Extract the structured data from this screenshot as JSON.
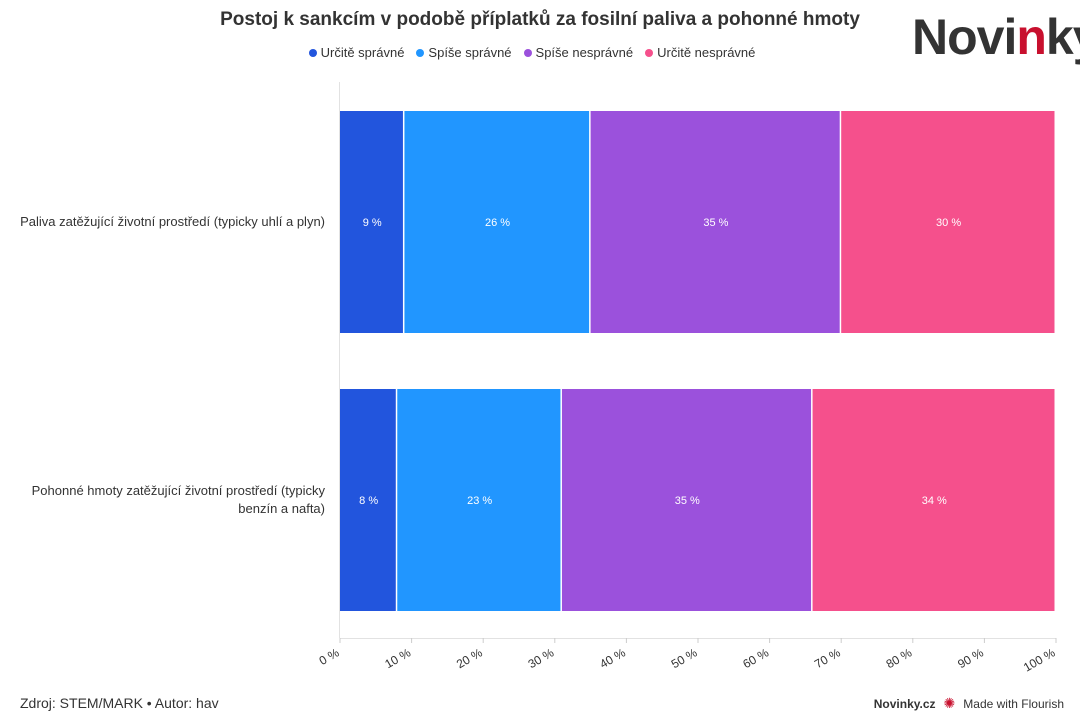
{
  "logo": {
    "part1": "Novi",
    "part2": "n",
    "part3": "ky"
  },
  "footer": {
    "source": "Zdroj: STEM/MARK • Autor: hav",
    "brand": "Novinky.cz",
    "made_with": "Made with Flourish"
  },
  "chart_data": {
    "type": "bar",
    "orientation": "horizontal",
    "stacked": true,
    "title": "Postoj k sankcím v podobě příplatků za fosilní paliva a pohonné hmoty",
    "categories": [
      "Paliva zatěžující životní prostředí (typicky uhlí a plyn)",
      "Pohonné hmoty zatěžující životní prostředí (typicky benzín a nafta)"
    ],
    "series": [
      {
        "name": "Určitě správné",
        "color": "#2255dd",
        "values": [
          9,
          8
        ]
      },
      {
        "name": "Spíše správné",
        "color": "#2196ff",
        "values": [
          26,
          23
        ]
      },
      {
        "name": "Spíše nesprávné",
        "color": "#9b51dc",
        "values": [
          35,
          35
        ]
      },
      {
        "name": "Určitě nesprávné",
        "color": "#f5508c",
        "values": [
          30,
          34
        ]
      }
    ],
    "xlim": [
      0,
      100
    ],
    "x_ticks": [
      "0 %",
      "10 %",
      "20 %",
      "30 %",
      "40 %",
      "50 %",
      "60 %",
      "70 %",
      "80 %",
      "90 %",
      "100 %"
    ],
    "unit": "%",
    "legend_position": "top-center",
    "grid": false
  }
}
